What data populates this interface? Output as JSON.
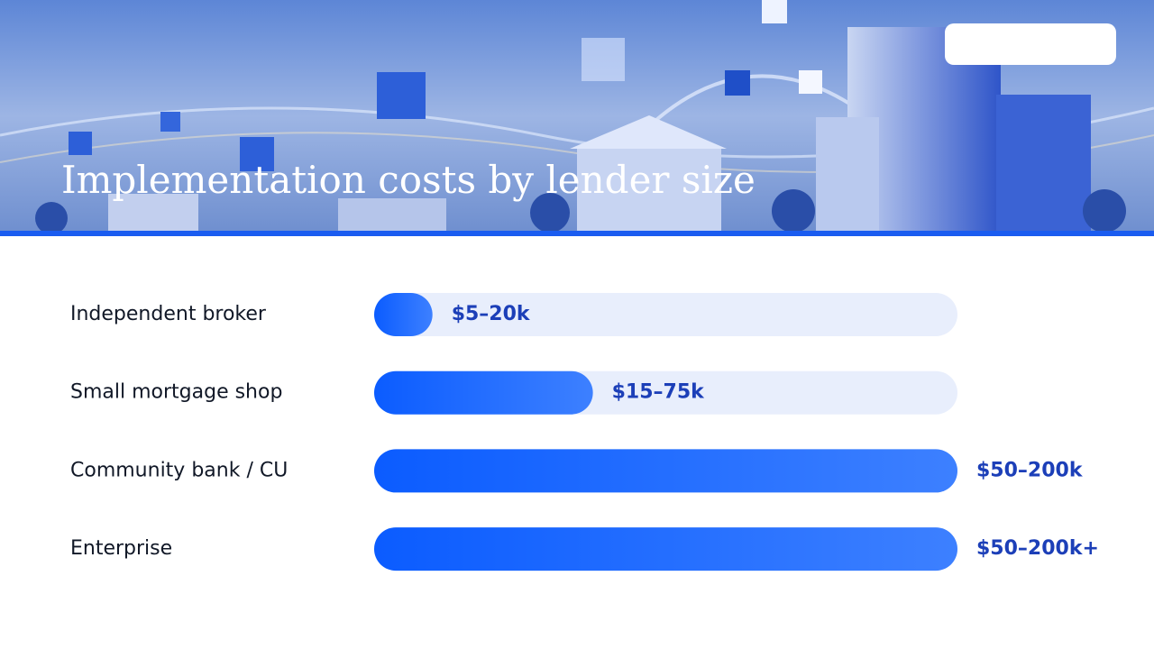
{
  "chart_data": {
    "type": "bar",
    "orientation": "horizontal",
    "title": "Implementation costs by lender size",
    "categories": [
      "Independent broker",
      "Small mortgage shop",
      "Community bank / CU",
      "Enterprise"
    ],
    "values": [
      20,
      75,
      200,
      200
    ],
    "value_labels": [
      "$5–20k",
      "$15–75k",
      "$50–200k",
      "$50–200k+"
    ],
    "color": "#1463ff",
    "xlim": [
      0,
      200
    ]
  }
}
